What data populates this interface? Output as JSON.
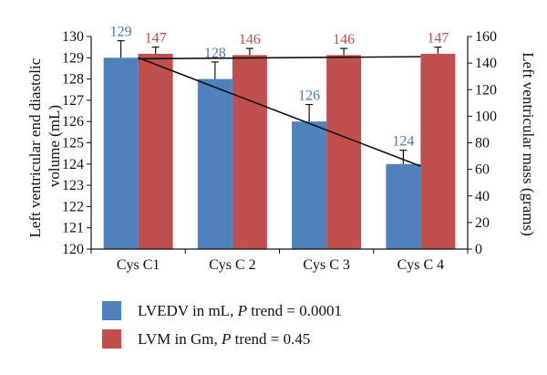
{
  "chart_data": {
    "type": "bar",
    "categories": [
      "Cys C1",
      "Cys C 2",
      "Cys C 3",
      "Cys C 4"
    ],
    "series": [
      {
        "name": "LVEDV in mL",
        "trend_label": "P trend = 0.0001",
        "axis": "left",
        "color": "#4f81bd",
        "label_color": "#4a7ab0",
        "values": [
          129,
          128,
          126,
          124
        ],
        "error_plus": [
          0.8,
          0.8,
          0.8,
          0.65
        ]
      },
      {
        "name": "LVM in Gm",
        "trend_label": "P trend = 0.45",
        "axis": "right",
        "color": "#c0504d",
        "label_color": "#c0504d",
        "values": [
          147,
          146,
          146,
          147
        ],
        "error_plus": [
          5,
          5,
          5,
          5
        ]
      }
    ],
    "data_labels": [
      [
        "129",
        "128",
        "126",
        "124"
      ],
      [
        "147",
        "146",
        "146",
        "147"
      ]
    ],
    "trendlines": [
      {
        "series": "LVEDV in mL",
        "axis": "left",
        "from": [
          1,
          129
        ],
        "to": [
          4,
          123.9
        ]
      },
      {
        "series": "LVM in Gm",
        "axis": "left",
        "from": [
          1,
          128.95
        ],
        "to": [
          4,
          129.05
        ]
      }
    ],
    "y_left": {
      "label": "Left ventricular end diastolic volume (mL)",
      "label_lines": [
        "Left ventricular end diastolic",
        "volume (mL)"
      ],
      "ylim": [
        120,
        130
      ],
      "ticks": [
        "120",
        "121",
        "122",
        "123",
        "124",
        "125",
        "126",
        "127",
        "128",
        "129",
        "130"
      ]
    },
    "y_right": {
      "label": "Left ventricular mass (grams)",
      "ylim": [
        0,
        160
      ],
      "ticks": [
        "0",
        "20",
        "40",
        "60",
        "80",
        "100",
        "120",
        "140",
        "160"
      ]
    },
    "grid": false,
    "legend_position": "bottom-left"
  }
}
